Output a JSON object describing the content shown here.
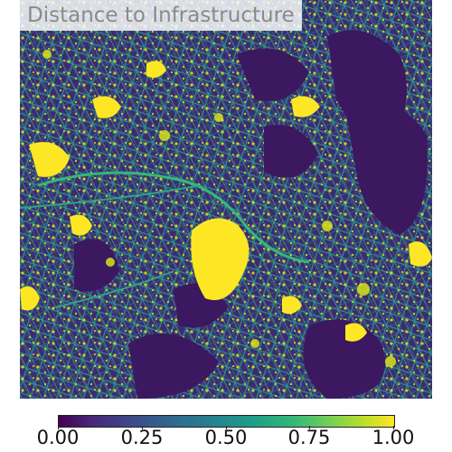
{
  "title": "Distance to Infrastructure",
  "colorbar": {
    "colormap": "viridis",
    "colors": [
      "#440154",
      "#3e4a89",
      "#26828e",
      "#35b779",
      "#fde725"
    ],
    "min": 0.0,
    "max": 1.0,
    "ticks": [
      {
        "value": 0.0,
        "label": "0.00"
      },
      {
        "value": 0.25,
        "label": "0.25"
      },
      {
        "value": 0.5,
        "label": "0.50"
      },
      {
        "value": 0.75,
        "label": "0.75"
      },
      {
        "value": 1.0,
        "label": "1.00"
      }
    ]
  }
}
